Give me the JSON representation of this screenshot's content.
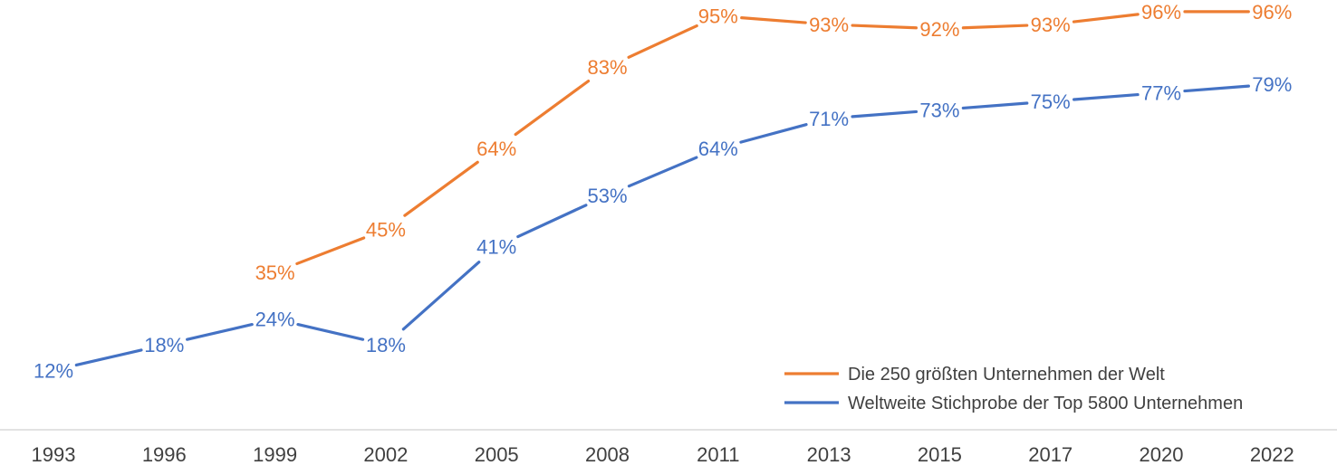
{
  "chart_data": {
    "type": "line",
    "title": "",
    "xlabel": "",
    "ylabel": "",
    "categories": [
      "1993",
      "1996",
      "1999",
      "2002",
      "2005",
      "2008",
      "2011",
      "2013",
      "2015",
      "2017",
      "2020",
      "2022"
    ],
    "ylim": [
      0,
      100
    ],
    "grid": false,
    "legend_position": "bottom-right",
    "series": [
      {
        "name": "Die 250 größten Unternehmen der Welt",
        "color": "#ED7D31",
        "values": [
          null,
          null,
          35,
          45,
          64,
          83,
          95,
          93,
          92,
          93,
          96,
          96
        ],
        "labels": [
          "",
          "",
          "35%",
          "45%",
          "64%",
          "83%",
          "95%",
          "93%",
          "92%",
          "93%",
          "96%",
          "96%"
        ]
      },
      {
        "name": "Weltweite Stichprobe der Top 5800 Unternehmen",
        "color": "#4472C4",
        "values": [
          12,
          18,
          24,
          18,
          41,
          53,
          64,
          71,
          73,
          75,
          77,
          79
        ],
        "labels": [
          "12%",
          "18%",
          "24%",
          "18%",
          "41%",
          "53%",
          "64%",
          "71%",
          "73%",
          "75%",
          "77%",
          "79%"
        ]
      }
    ]
  }
}
